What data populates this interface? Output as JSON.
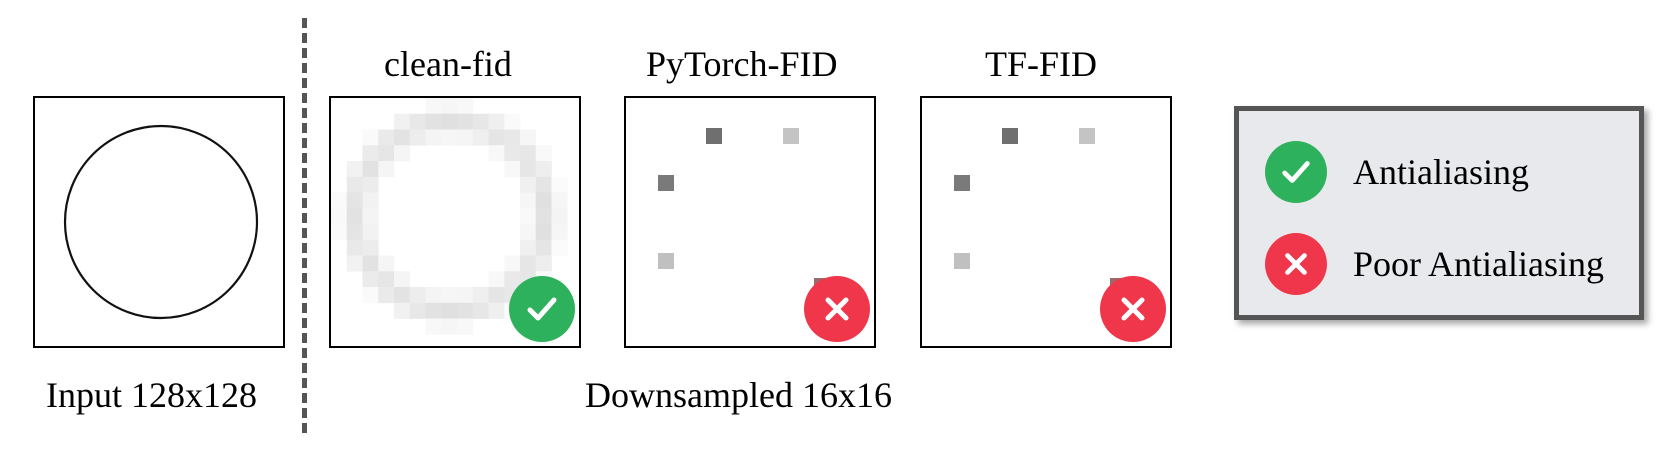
{
  "titles": {
    "clean_fid": "clean-fid",
    "pytorch_fid": "PyTorch-FID",
    "tf_fid": "TF-FID"
  },
  "captions": {
    "input": "Input 128x128",
    "downsampled": "Downsampled 16x16"
  },
  "legend": {
    "good_label": "Antialiasing",
    "bad_label": "Poor Antialiasing"
  },
  "colors": {
    "good": "#2eb15c",
    "bad": "#f0364a",
    "legend_bg": "#e8e9ec",
    "legend_border": "#555555",
    "divider": "#555555"
  },
  "icons": {
    "good": "check-icon",
    "bad": "cross-icon"
  }
}
